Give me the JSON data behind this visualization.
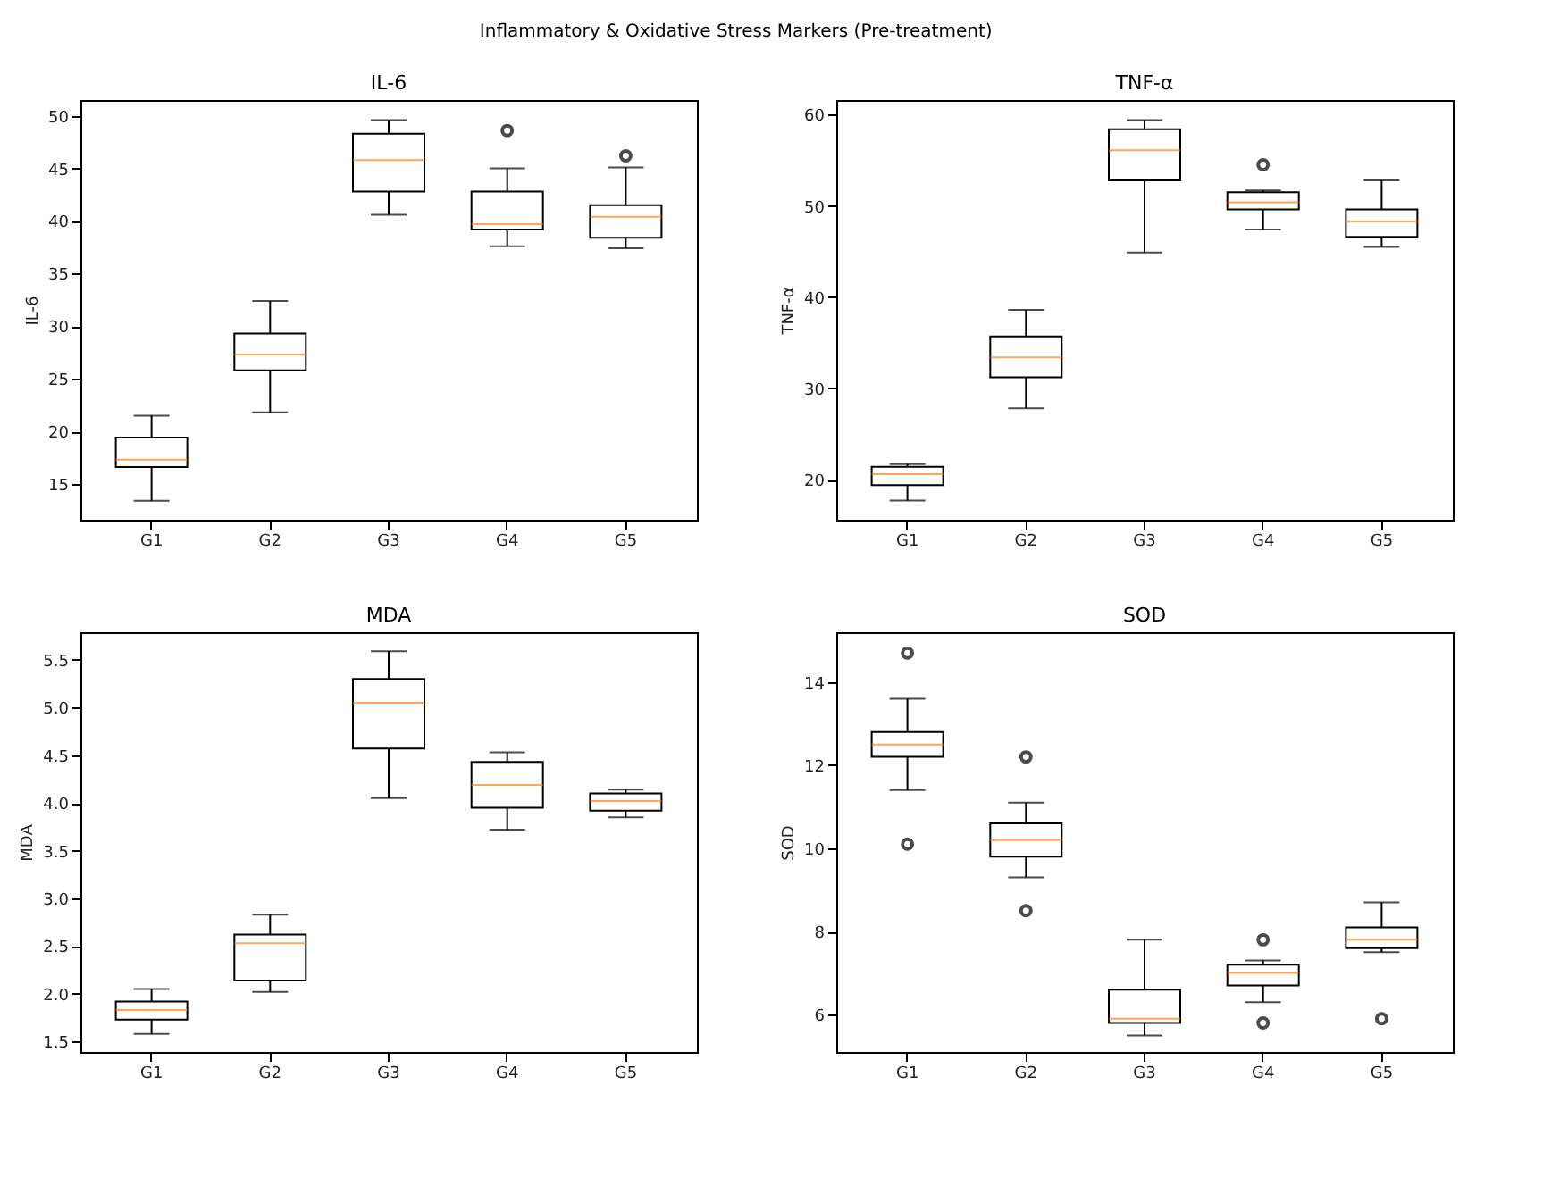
{
  "chart_data": [
    {
      "type": "box",
      "title": "IL-6",
      "ylabel": "IL-6",
      "annotations": [
        "Inflammatory & Oxidative Stress Markers (Pre-treatment)"
      ],
      "categories": [
        "G1",
        "G2",
        "G3",
        "G4",
        "G5"
      ],
      "ylim": [
        11.6,
        51.5
      ],
      "yticks": [
        15,
        20,
        25,
        30,
        35,
        40,
        45,
        50
      ],
      "grid": false,
      "boxes": [
        {
          "low": 13.4,
          "q1": 16.6,
          "median": 17.3,
          "q3": 19.4,
          "high": 21.5
        },
        {
          "low": 21.8,
          "q1": 25.8,
          "median": 27.3,
          "q3": 29.3,
          "high": 32.4
        },
        {
          "low": 40.6,
          "q1": 42.8,
          "median": 45.8,
          "q3": 48.3,
          "high": 49.6
        },
        {
          "low": 37.6,
          "q1": 39.2,
          "median": 39.7,
          "q3": 42.8,
          "high": 45.0,
          "outliers": [
            48.6
          ]
        },
        {
          "low": 37.4,
          "q1": 38.4,
          "median": 40.4,
          "q3": 41.5,
          "high": 45.1,
          "outliers": [
            46.2
          ]
        }
      ]
    },
    {
      "type": "box",
      "title": "TNF-α",
      "ylabel": "TNF-α",
      "categories": [
        "G1",
        "G2",
        "G3",
        "G4",
        "G5"
      ],
      "ylim": [
        15.6,
        61.6
      ],
      "yticks": [
        20,
        30,
        40,
        50,
        60
      ],
      "grid": false,
      "boxes": [
        {
          "low": 17.7,
          "q1": 19.4,
          "median": 20.6,
          "q3": 21.4,
          "high": 21.7
        },
        {
          "low": 27.8,
          "q1": 31.2,
          "median": 33.4,
          "q3": 35.7,
          "high": 38.6
        },
        {
          "low": 44.9,
          "q1": 52.8,
          "median": 56.1,
          "q3": 58.4,
          "high": 59.4
        },
        {
          "low": 47.4,
          "q1": 49.6,
          "median": 50.4,
          "q3": 51.5,
          "high": 51.7,
          "outliers": [
            54.5
          ]
        },
        {
          "low": 45.5,
          "q1": 46.6,
          "median": 48.3,
          "q3": 49.6,
          "high": 52.8
        }
      ]
    },
    {
      "type": "box",
      "title": "MDA",
      "ylabel": "MDA",
      "categories": [
        "G1",
        "G2",
        "G3",
        "G4",
        "G5"
      ],
      "ylim": [
        1.39,
        5.79
      ],
      "yticks": [
        1.5,
        {
          "value": 2,
          "label": "2.0"
        },
        2.5,
        {
          "value": 3,
          "label": "3.0"
        },
        3.5,
        {
          "value": 4,
          "label": "4.0"
        },
        4.5,
        {
          "value": 5,
          "label": "5.0"
        },
        5.5
      ],
      "grid": false,
      "boxes": [
        {
          "low": 1.58,
          "q1": 1.73,
          "median": 1.83,
          "q3": 1.92,
          "high": 2.05
        },
        {
          "low": 2.02,
          "q1": 2.14,
          "median": 2.53,
          "q3": 2.62,
          "high": 2.83
        },
        {
          "low": 4.05,
          "q1": 4.57,
          "median": 5.05,
          "q3": 5.3,
          "high": 5.59
        },
        {
          "low": 3.72,
          "q1": 3.95,
          "median": 4.19,
          "q3": 4.43,
          "high": 4.53
        },
        {
          "low": 3.85,
          "q1": 3.92,
          "median": 4.02,
          "q3": 4.1,
          "high": 4.14
        }
      ]
    },
    {
      "type": "box",
      "title": "SOD",
      "ylabel": "SOD",
      "categories": [
        "G1",
        "G2",
        "G3",
        "G4",
        "G5"
      ],
      "ylim": [
        5.1,
        15.2
      ],
      "yticks": [
        6,
        8,
        10,
        12,
        14
      ],
      "grid": false,
      "boxes": [
        {
          "low": 11.4,
          "q1": 12.2,
          "median": 12.5,
          "q3": 12.8,
          "high": 13.6,
          "outliers": [
            14.7,
            10.1
          ]
        },
        {
          "low": 9.3,
          "q1": 9.8,
          "median": 10.2,
          "q3": 10.6,
          "high": 11.1,
          "outliers": [
            12.2,
            8.5
          ]
        },
        {
          "low": 5.5,
          "q1": 5.8,
          "median": 5.9,
          "q3": 6.6,
          "high": 7.8
        },
        {
          "low": 6.3,
          "q1": 6.7,
          "median": 7.0,
          "q3": 7.2,
          "high": 7.3,
          "outliers": [
            7.8,
            5.8
          ]
        },
        {
          "low": 7.5,
          "q1": 7.6,
          "median": 7.8,
          "q3": 8.1,
          "high": 8.7,
          "outliers": [
            5.9
          ]
        }
      ]
    }
  ]
}
